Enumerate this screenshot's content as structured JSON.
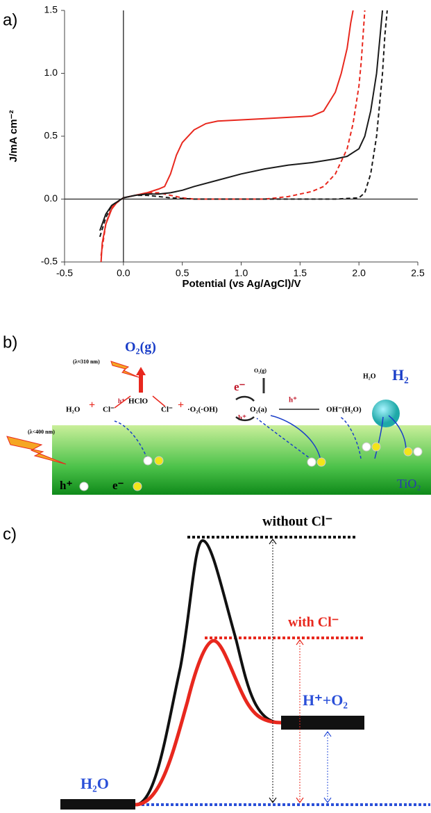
{
  "chart_data": {
    "type": "line",
    "panel_label": "a)",
    "xlabel": "Potential (vs Ag/AgCl)/V",
    "ylabel": "J/mA cm⁻²",
    "xlim": [
      -0.5,
      2.5
    ],
    "ylim": [
      -0.5,
      1.5
    ],
    "xticks": [
      -0.5,
      {
        "value": 0,
        "label": "0.0"
      },
      0.5,
      {
        "value": 1,
        "label": "1.0"
      },
      1.5,
      {
        "value": 2,
        "label": "2.0"
      },
      2.5
    ],
    "yticks": [
      -0.5,
      {
        "value": 0,
        "label": "0.0"
      },
      0.5,
      {
        "value": 1,
        "label": "1.0"
      },
      1.5
    ],
    "series": [
      {
        "color": "#e8281e",
        "dashed": false,
        "x": [
          -0.19,
          -0.18,
          -0.15,
          -0.1,
          -0.05,
          0,
          0.1,
          0.2,
          0.3,
          0.35,
          0.4,
          0.45,
          0.5,
          0.6,
          0.7,
          0.8,
          1.0,
          1.2,
          1.4,
          1.6,
          1.7,
          1.8,
          1.85,
          1.9,
          1.93,
          1.95
        ],
        "values": [
          -0.5,
          -0.35,
          -0.2,
          -0.08,
          -0.02,
          0.01,
          0.03,
          0.05,
          0.08,
          0.1,
          0.2,
          0.35,
          0.45,
          0.55,
          0.6,
          0.62,
          0.63,
          0.64,
          0.65,
          0.66,
          0.7,
          0.85,
          1.0,
          1.2,
          1.4,
          1.5
        ]
      },
      {
        "color": "#e8281e",
        "dashed": true,
        "x": [
          -0.19,
          -0.15,
          -0.1,
          0,
          0.1,
          0.2,
          0.3,
          0.4,
          0.5,
          0.6,
          0.8,
          1.0,
          1.2,
          1.4,
          1.6,
          1.7,
          1.8,
          1.9,
          1.95,
          2.0,
          2.02,
          2.05
        ],
        "values": [
          -0.45,
          -0.2,
          -0.06,
          0.01,
          0.03,
          0.05,
          0.05,
          0.03,
          0.01,
          0,
          0,
          0,
          0,
          0.02,
          0.06,
          0.1,
          0.2,
          0.4,
          0.6,
          0.9,
          1.1,
          1.5
        ]
      },
      {
        "color": "#1a1a1a",
        "dashed": false,
        "x": [
          -0.2,
          -0.15,
          -0.1,
          0,
          0.1,
          0.2,
          0.3,
          0.4,
          0.5,
          0.6,
          0.8,
          1.0,
          1.2,
          1.4,
          1.6,
          1.8,
          1.9,
          2.0,
          2.05,
          2.1,
          2.15,
          2.18,
          2.2
        ],
        "values": [
          -0.25,
          -0.12,
          -0.05,
          0.01,
          0.03,
          0.04,
          0.04,
          0.05,
          0.07,
          0.1,
          0.15,
          0.2,
          0.24,
          0.27,
          0.29,
          0.32,
          0.34,
          0.4,
          0.5,
          0.7,
          1.0,
          1.3,
          1.5
        ]
      },
      {
        "color": "#1a1a1a",
        "dashed": true,
        "x": [
          -0.2,
          -0.15,
          -0.1,
          0,
          0.1,
          0.2,
          0.3,
          0.4,
          0.6,
          1.0,
          1.5,
          1.8,
          2.0,
          2.05,
          2.1,
          2.15,
          2.2,
          2.22,
          2.24
        ],
        "values": [
          -0.3,
          -0.15,
          -0.05,
          0.01,
          0.03,
          0.03,
          0.02,
          0.01,
          0,
          0,
          0,
          0,
          0.01,
          0.05,
          0.2,
          0.5,
          1.0,
          1.3,
          1.5
        ]
      }
    ]
  },
  "diagram_b": {
    "panel_label": "b)",
    "uv_label": "(λ≈310 nm)",
    "o2g_big": "O₂(g)",
    "hclo": "HClO",
    "h2o_left": "H₂O",
    "cl_left": "Cl⁻",
    "h_plus_left": "h⁺",
    "cl_mid": "Cl⁻",
    "o2_oh": "·O₂(·OH)",
    "o2g_small": "O₂(g)",
    "e_minus": "e⁻",
    "h_plus_mid": "h⁺",
    "o2a": "O₂(a)",
    "h_plus_right": "h⁺",
    "oh_h2o": "OH⁻(H₂O)",
    "h2o_right": "H₂O",
    "h2": "H₂",
    "vis_label": "(λ<400 nm)",
    "legend_h": "h⁺",
    "legend_e": "e⁻",
    "tio2": "TiO₂"
  },
  "diagram_c": {
    "panel_label": "c)",
    "without": "without Cl⁻",
    "with": "with Cl⁻",
    "products": "H⁺+O₂",
    "reactant": "H₂O"
  }
}
